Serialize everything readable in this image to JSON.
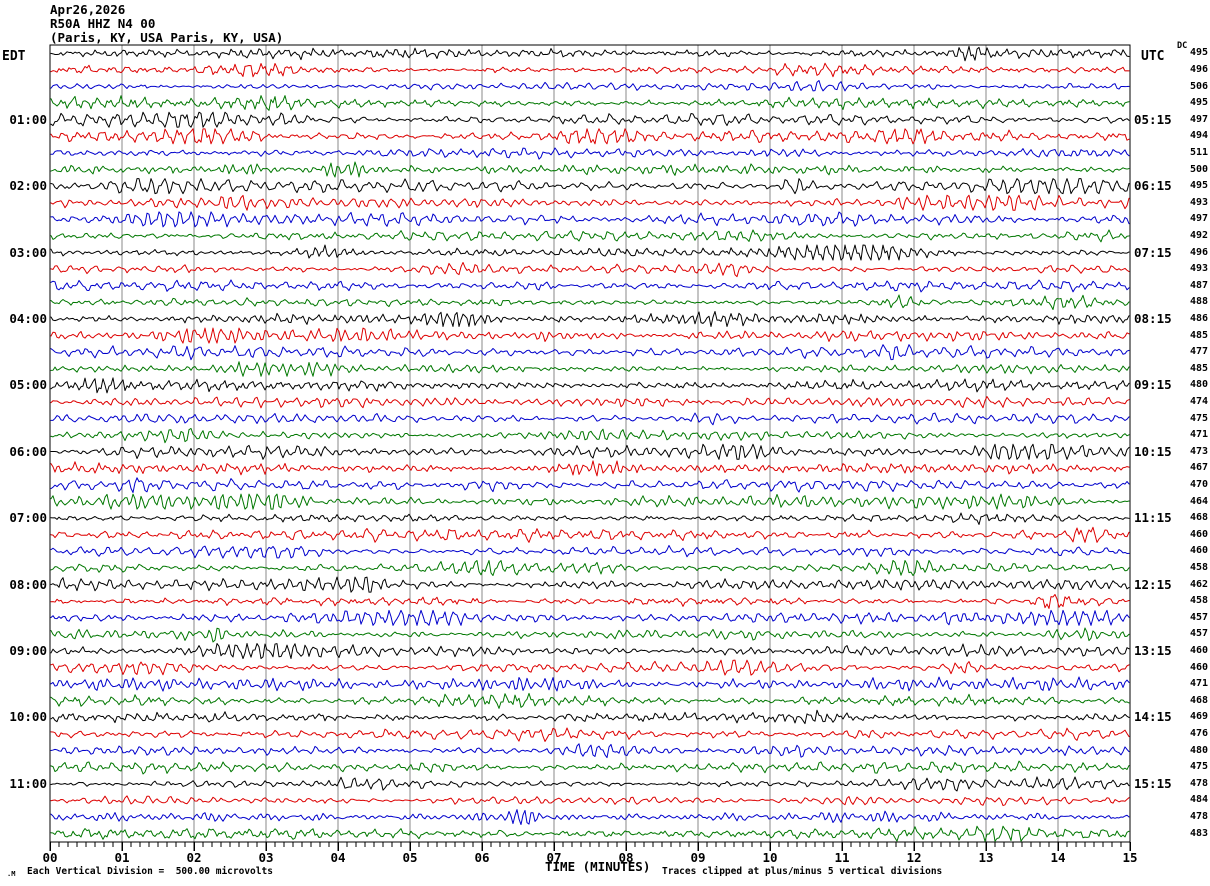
{
  "header": {
    "date": "Apr26,2026",
    "station": "R50A HHZ N4 00",
    "location": "(Paris, KY, USA Paris, KY, USA)"
  },
  "left_axis": {
    "label": "EDT",
    "hours": [
      "01:00",
      "02:00",
      "03:00",
      "04:00",
      "05:00",
      "06:00",
      "07:00",
      "08:00",
      "09:00",
      "10:00",
      "11:00"
    ]
  },
  "right_axis": {
    "label": "UTC",
    "dc_label": "DC",
    "hours": [
      "05:15",
      "06:15",
      "07:15",
      "08:15",
      "09:15",
      "10:15",
      "11:15",
      "12:15",
      "13:15",
      "14:15",
      "15:15"
    ]
  },
  "x_axis": {
    "label": "TIME (MINUTES)",
    "ticks": [
      "00",
      "01",
      "02",
      "03",
      "04",
      "05",
      "06",
      "07",
      "08",
      "09",
      "10",
      "11",
      "12",
      "13",
      "14",
      "15"
    ]
  },
  "footer": {
    "marker": ".M",
    "scale_note": "Each Vertical Division =  500.00 microvolts",
    "clip_note": "Traces clipped at plus/minus 5 vertical divisions"
  },
  "colors": {
    "trace_cycle": [
      "#000000",
      "#dd0000",
      "#0000cc",
      "#007700"
    ],
    "grid": "#888888",
    "border": "#000000",
    "text": "#000000",
    "background": "#ffffff"
  },
  "chart_data": {
    "type": "line",
    "subtype": "helicorder-seismogram",
    "title": "R50A HHZ N4 00",
    "date": "Apr26,2026",
    "location": "(Paris, KY, USA Paris, KY, USA)",
    "timezone_left": "EDT",
    "timezone_right": "UTC",
    "xlabel": "TIME (MINUTES)",
    "x_range_minutes": [
      0,
      15
    ],
    "x_major_tick_minutes": 1,
    "x_minor_tick_minutes": 0.125,
    "x_tick_labels": [
      "00",
      "01",
      "02",
      "03",
      "04",
      "05",
      "06",
      "07",
      "08",
      "09",
      "10",
      "11",
      "12",
      "13",
      "14",
      "15"
    ],
    "row_count": 48,
    "rows_per_hour": 4,
    "minutes_per_row": 15,
    "left_hour_labels_edt": [
      "01:00",
      "02:00",
      "03:00",
      "04:00",
      "05:00",
      "06:00",
      "07:00",
      "08:00",
      "09:00",
      "10:00",
      "11:00"
    ],
    "right_hour_labels_utc": [
      "05:15",
      "06:15",
      "07:15",
      "08:15",
      "09:15",
      "10:15",
      "11:15",
      "12:15",
      "13:15",
      "14:15",
      "15:15"
    ],
    "dc_offsets_per_row": [
      495,
      496,
      506,
      495,
      497,
      494,
      511,
      500,
      495,
      493,
      497,
      492,
      496,
      493,
      487,
      488,
      486,
      485,
      477,
      485,
      480,
      474,
      475,
      471,
      473,
      467,
      470,
      464,
      468,
      460,
      460,
      458,
      462,
      458,
      457,
      457,
      460,
      460,
      471,
      468,
      469,
      476,
      480,
      475,
      478,
      484,
      478,
      483
    ],
    "trace_color_cycle": [
      "black",
      "red",
      "blue",
      "green"
    ],
    "vertical_division_microvolts": 500.0,
    "clip_divisions": 5,
    "grid": "vertical lines at each minute"
  }
}
